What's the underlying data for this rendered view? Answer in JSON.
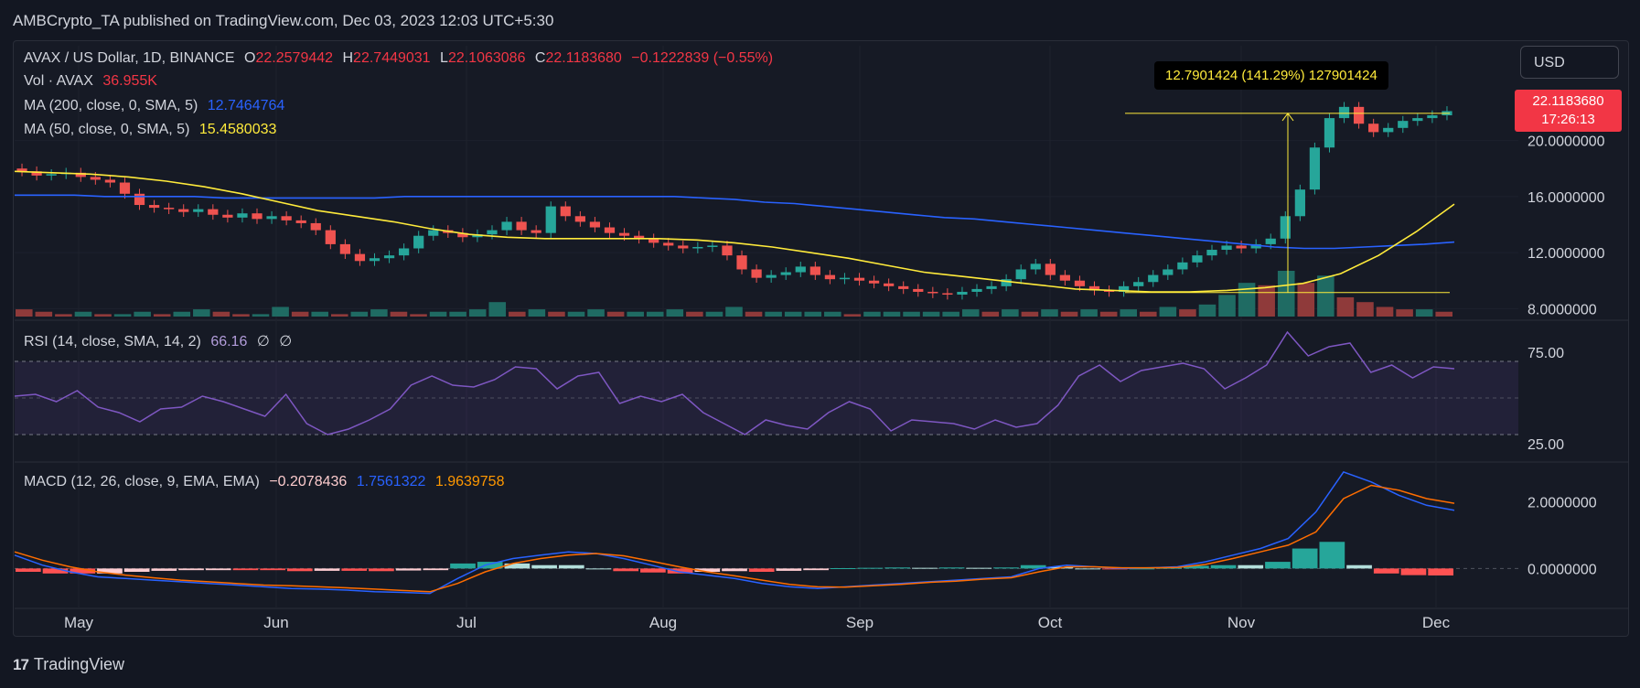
{
  "header": {
    "text": "AMBCrypto_TA published on TradingView.com, Dec 03, 2023 12:03 UTC+5:30"
  },
  "legend": {
    "symbol": "AVAX / US Dollar, 1D, BINANCE",
    "o_label": "O",
    "o": "22.2579442",
    "h_label": "H",
    "h": "22.7449031",
    "l_label": "L",
    "l": "22.1063086",
    "c_label": "C",
    "c": "22.1183680",
    "change": "−0.1222839 (−0.55%)",
    "vol_label": "Vol · AVAX",
    "vol": "36.955K",
    "ma200_label": "MA (200, close, 0, SMA, 5)",
    "ma200": "12.7464764",
    "ma50_label": "MA (50, close, 0, SMA, 5)",
    "ma50": "15.4580033"
  },
  "rsi_legend": {
    "label": "RSI (14, close, SMA, 14, 2)",
    "value": "66.16",
    "extra1": "∅",
    "extra2": "∅"
  },
  "macd_legend": {
    "label": "MACD (12, 26, close, 9, EMA, EMA)",
    "hist": "−0.2078436",
    "macd": "1.7561322",
    "signal": "1.9639758"
  },
  "currency_button": "USD",
  "price_tag": {
    "price": "22.1183680",
    "countdown": "17:26:13"
  },
  "measure_tooltip": "12.7901424 (141.29%) 127901424",
  "footer": {
    "brand": "TradingView",
    "logo": "17"
  },
  "colors": {
    "up": "#26a69a",
    "down": "#ef5350",
    "ma200": "#2962ff",
    "ma50": "#ffeb3b",
    "rsi": "#7e57c2",
    "macd": "#2962ff",
    "signal": "#ff6d00"
  },
  "chart_data": {
    "type": "line",
    "x_tick_labels": [
      "May",
      "Jun",
      "Jul",
      "Aug",
      "Sep",
      "Oct",
      "Nov",
      "Dec"
    ],
    "price_axis": {
      "ticks": [
        "20.0000000",
        "16.0000000",
        "12.0000000",
        "8.0000000"
      ],
      "values": [
        20,
        16,
        12,
        8
      ],
      "ylim": [
        7.5,
        23.5
      ]
    },
    "rsi_axis": {
      "ticks": [
        "75.00",
        "25.00"
      ],
      "values": [
        75,
        25
      ],
      "ylim": [
        15,
        90
      ]
    },
    "macd_axis": {
      "ticks": [
        "2.0000000",
        "0.0000000"
      ],
      "values": [
        2,
        0
      ],
      "ylim": [
        -1.2,
        3.2
      ]
    },
    "price_close": [
      17.8,
      17.5,
      17.6,
      17.7,
      17.4,
      17.2,
      17.0,
      16.2,
      15.4,
      15.2,
      15.1,
      14.9,
      15.1,
      14.7,
      14.5,
      14.8,
      14.4,
      14.6,
      14.3,
      14.1,
      13.6,
      12.6,
      11.9,
      11.4,
      11.6,
      11.8,
      12.3,
      13.2,
      13.6,
      13.4,
      13.1,
      13.3,
      13.6,
      14.2,
      13.6,
      13.4,
      15.3,
      14.6,
      14.2,
      13.8,
      13.4,
      13.2,
      13.0,
      12.7,
      12.5,
      12.3,
      12.4,
      12.5,
      11.8,
      10.8,
      10.2,
      10.4,
      10.6,
      11.0,
      10.4,
      10.1,
      10.2,
      10.0,
      9.8,
      9.6,
      9.4,
      9.2,
      9.1,
      9.0,
      9.2,
      9.4,
      9.6,
      10.1,
      10.8,
      11.2,
      10.4,
      10.0,
      9.6,
      9.3,
      9.2,
      9.6,
      9.9,
      10.4,
      10.8,
      11.3,
      11.8,
      12.2,
      12.5,
      12.3,
      12.6,
      13.0,
      14.6,
      16.5,
      19.5,
      21.6,
      22.4,
      21.2,
      20.6,
      20.9,
      21.4,
      21.6,
      21.8,
      22.1
    ],
    "ma200": [
      16.1,
      16.1,
      16.1,
      16.0,
      16.0,
      16.0,
      16.0,
      15.9,
      15.9,
      15.9,
      15.9,
      15.9,
      15.9,
      16.0,
      16.0,
      16.0,
      16.0,
      16.0,
      16.0,
      16.0,
      16.0,
      16.0,
      16.0,
      15.9,
      15.8,
      15.6,
      15.5,
      15.3,
      15.1,
      14.9,
      14.7,
      14.5,
      14.4,
      14.2,
      14.0,
      13.8,
      13.6,
      13.4,
      13.2,
      13.0,
      12.8,
      12.6,
      12.4,
      12.3,
      12.3,
      12.4,
      12.5,
      12.6,
      12.75
    ],
    "ma50": [
      17.8,
      17.7,
      17.6,
      17.4,
      17.1,
      16.7,
      16.2,
      15.6,
      15.0,
      14.6,
      14.2,
      13.7,
      13.3,
      13.1,
      13.0,
      13.0,
      13.0,
      13.0,
      12.9,
      12.7,
      12.4,
      12.0,
      11.6,
      11.1,
      10.6,
      10.3,
      10.0,
      9.7,
      9.4,
      9.3,
      9.2,
      9.2,
      9.3,
      9.5,
      9.8,
      10.5,
      11.8,
      13.5,
      15.46
    ],
    "rsi": [
      51,
      52,
      48,
      54,
      45,
      42,
      37,
      44,
      45,
      51,
      48,
      44,
      40,
      52,
      36,
      30,
      33,
      38,
      44,
      57,
      62,
      57,
      56,
      60,
      67,
      66,
      55,
      62,
      64,
      47,
      51,
      48,
      52,
      42,
      36,
      30,
      38,
      35,
      33,
      42,
      48,
      44,
      32,
      38,
      37,
      36,
      33,
      38,
      34,
      36,
      46,
      62,
      68,
      59,
      65,
      67,
      69,
      66,
      55,
      61,
      68,
      86,
      73,
      78,
      80,
      64,
      68,
      61,
      67,
      66
    ],
    "macd_line": [
      0.4,
      0.1,
      -0.1,
      -0.25,
      -0.3,
      -0.35,
      -0.4,
      -0.45,
      -0.5,
      -0.55,
      -0.6,
      -0.62,
      -0.65,
      -0.7,
      -0.72,
      -0.75,
      -0.3,
      0.1,
      0.3,
      0.4,
      0.5,
      0.45,
      0.3,
      0.1,
      -0.1,
      -0.2,
      -0.3,
      -0.45,
      -0.55,
      -0.6,
      -0.55,
      -0.5,
      -0.45,
      -0.4,
      -0.35,
      -0.3,
      -0.25,
      0.0,
      0.1,
      0.05,
      0.0,
      0.02,
      0.05,
      0.2,
      0.4,
      0.6,
      0.9,
      1.7,
      2.9,
      2.6,
      2.2,
      1.9,
      1.75
    ],
    "signal_line": [
      0.5,
      0.25,
      0.05,
      -0.1,
      -0.2,
      -0.28,
      -0.35,
      -0.4,
      -0.45,
      -0.5,
      -0.52,
      -0.55,
      -0.58,
      -0.62,
      -0.66,
      -0.7,
      -0.45,
      -0.1,
      0.15,
      0.3,
      0.4,
      0.45,
      0.38,
      0.22,
      0.05,
      -0.1,
      -0.22,
      -0.35,
      -0.48,
      -0.55,
      -0.56,
      -0.52,
      -0.48,
      -0.42,
      -0.38,
      -0.32,
      -0.28,
      -0.1,
      0.05,
      0.05,
      0.02,
      0.02,
      0.03,
      0.12,
      0.3,
      0.5,
      0.7,
      1.1,
      2.1,
      2.5,
      2.35,
      2.1,
      1.96
    ],
    "volume": [
      3,
      2,
      1,
      2,
      1,
      1,
      2,
      1,
      2,
      3,
      2,
      1,
      1,
      4,
      2,
      2,
      1,
      2,
      3,
      2,
      1,
      2,
      2,
      3,
      6,
      2,
      3,
      2,
      2,
      3,
      2,
      2,
      2,
      3,
      2,
      2,
      4,
      2,
      2,
      2,
      2,
      2,
      1,
      2,
      2,
      2,
      2,
      2,
      3,
      2,
      3,
      2,
      3,
      2,
      3,
      2,
      3,
      2,
      4,
      3,
      5,
      9,
      14,
      13,
      19,
      14,
      17,
      8,
      6,
      4,
      3,
      3,
      2
    ]
  }
}
